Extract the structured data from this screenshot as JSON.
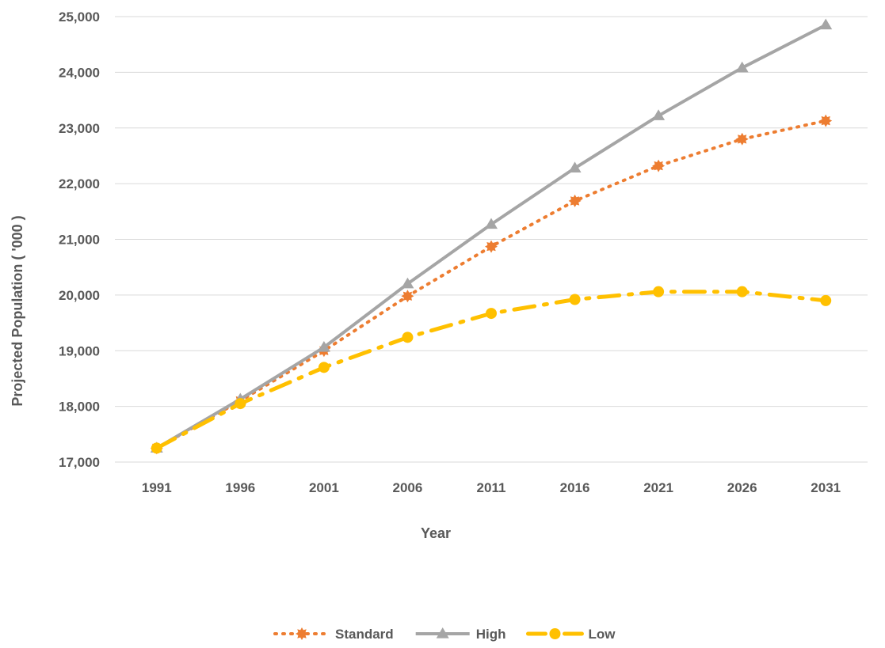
{
  "chart_data": {
    "type": "line",
    "x": [
      "1991",
      "1996",
      "2001",
      "2006",
      "2011",
      "2016",
      "2021",
      "2026",
      "2031"
    ],
    "series": [
      {
        "name": "Standard",
        "color": "#ED7D31",
        "marker": "star",
        "line_style": "dotted",
        "values": [
          17250,
          18100,
          19000,
          19980,
          20870,
          21690,
          22320,
          22800,
          23130
        ]
      },
      {
        "name": "High",
        "color": "#A5A5A5",
        "marker": "triangle",
        "line_style": "solid",
        "values": [
          17250,
          18130,
          19060,
          20200,
          21270,
          22280,
          23220,
          24080,
          24850
        ]
      },
      {
        "name": "Low",
        "color": "#FFC000",
        "marker": "circle",
        "line_style": "dash-dot",
        "values": [
          17250,
          18050,
          18700,
          19240,
          19670,
          19920,
          20060,
          20060,
          19900
        ]
      }
    ],
    "xlabel": "Year",
    "ylabel": "Projected Population ( '000 )",
    "ylim": [
      17000,
      25000
    ],
    "yticks": [
      "17,000",
      "18,000",
      "19,000",
      "20,000",
      "21,000",
      "22,000",
      "23,000",
      "24,000",
      "25,000"
    ],
    "grid": "horizontal",
    "legend_position": "bottom"
  }
}
